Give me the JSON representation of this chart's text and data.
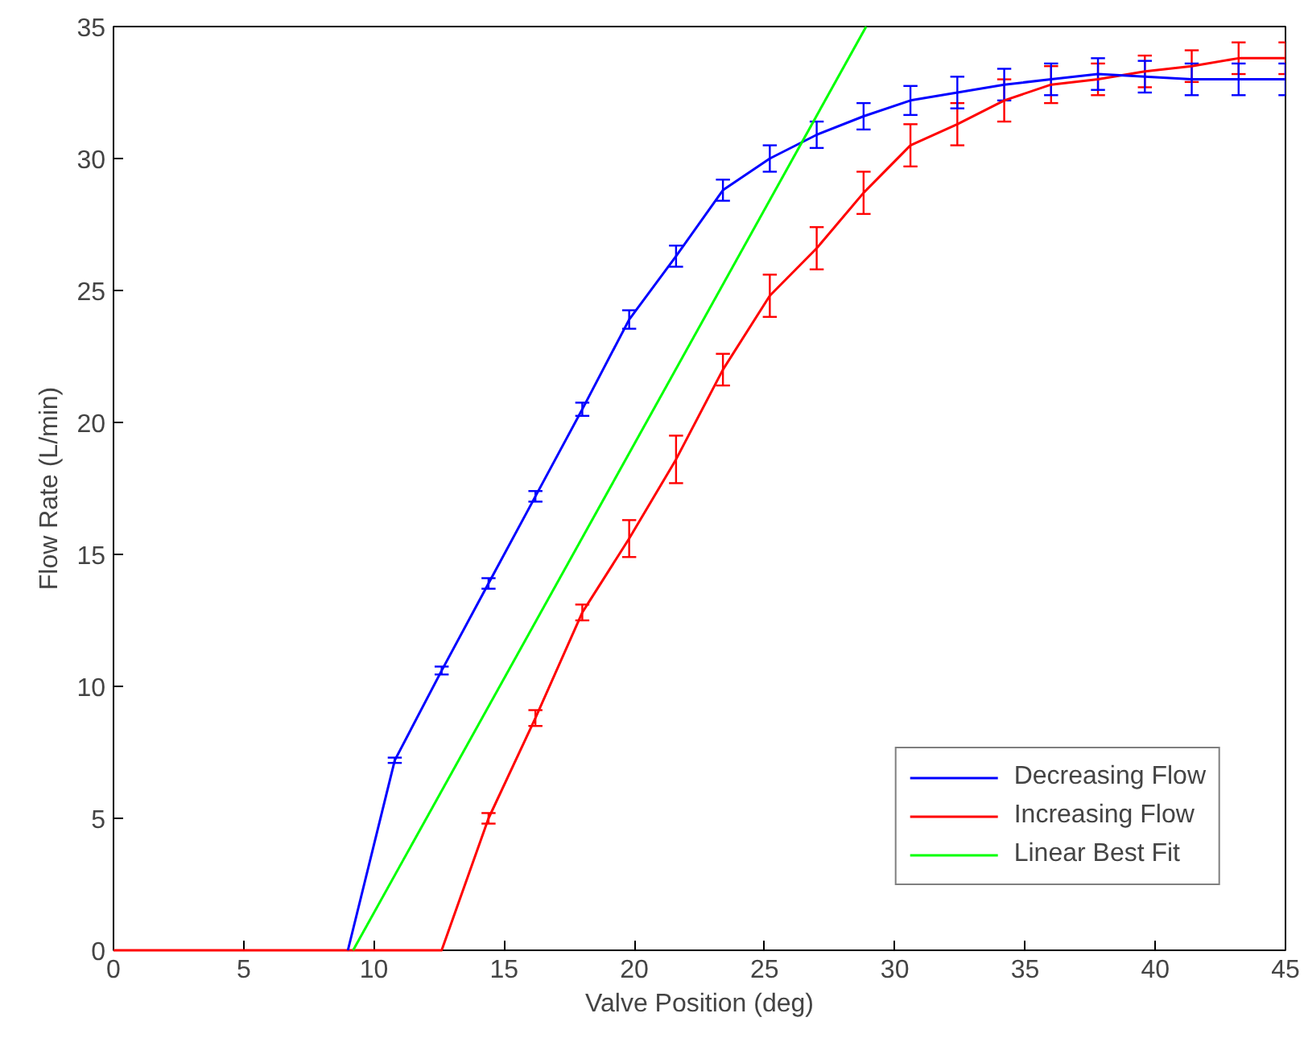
{
  "chart_data": {
    "type": "line",
    "xlabel": "Valve Position (deg)",
    "ylabel": "Flow Rate (L/min)",
    "xlim": [
      0,
      45
    ],
    "ylim": [
      0,
      35
    ],
    "xticks": [
      0,
      5,
      10,
      15,
      20,
      25,
      30,
      35,
      40,
      45
    ],
    "yticks": [
      0,
      5,
      10,
      15,
      20,
      25,
      30,
      35
    ],
    "grid": false,
    "legend": "bottom right",
    "marker": "none",
    "line_style": "solid",
    "series": [
      {
        "name": "Decreasing Flow",
        "color": "#0000ff",
        "x": [
          9.0,
          10.8,
          12.6,
          14.4,
          16.2,
          18.0,
          19.8,
          21.6,
          23.4,
          25.2,
          27.0,
          28.8,
          30.6,
          32.4,
          34.2,
          36.0,
          37.8,
          39.6,
          41.4,
          43.2,
          45.0
        ],
        "values": [
          0,
          7.2,
          10.6,
          13.9,
          17.2,
          20.5,
          23.9,
          26.3,
          28.8,
          30.0,
          30.9,
          31.6,
          32.2,
          32.5,
          32.8,
          33.0,
          33.2,
          33.1,
          33.0,
          33.0,
          33.0
        ],
        "errors": [
          null,
          0.1,
          0.15,
          0.2,
          0.2,
          0.25,
          0.35,
          0.4,
          0.4,
          0.5,
          0.5,
          0.5,
          0.55,
          0.6,
          0.6,
          0.6,
          0.6,
          0.6,
          0.6,
          0.6,
          0.6
        ]
      },
      {
        "name": "Increasing Flow",
        "color": "#ff0000",
        "x": [
          0,
          1.8,
          3.6,
          5.4,
          7.2,
          10.8,
          12.6,
          14.4,
          16.2,
          18.0,
          19.8,
          21.6,
          23.4,
          25.2,
          27.0,
          28.8,
          30.6,
          32.4,
          34.2,
          36.0,
          37.8,
          39.6,
          41.4,
          43.2,
          45.0
        ],
        "values": [
          0,
          0,
          0,
          0,
          0,
          0,
          0,
          5.0,
          8.8,
          12.8,
          15.6,
          18.6,
          22.0,
          24.8,
          26.6,
          28.7,
          30.5,
          31.3,
          32.2,
          32.8,
          33.0,
          33.3,
          33.5,
          33.8,
          33.8
        ],
        "errors": [
          null,
          null,
          null,
          null,
          null,
          null,
          null,
          0.2,
          0.3,
          0.3,
          0.7,
          0.9,
          0.6,
          0.8,
          0.8,
          0.8,
          0.8,
          0.8,
          0.8,
          0.7,
          0.6,
          0.6,
          0.6,
          0.6,
          0.6
        ]
      },
      {
        "name": "Linear Best Fit",
        "color": "#00ff00",
        "x": [
          9.2,
          28.9
        ],
        "values": [
          0,
          35
        ]
      }
    ]
  }
}
